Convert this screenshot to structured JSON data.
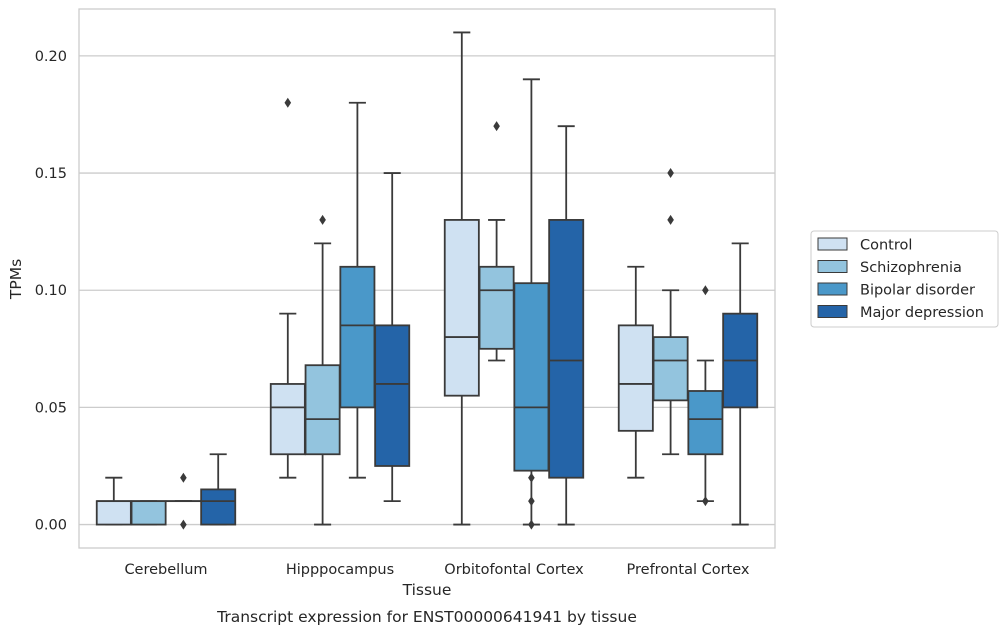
{
  "chart_data": {
    "type": "box",
    "xlabel": "Tissue",
    "ylabel": "TPMs",
    "caption": "Transcript expression for ENST00000641941 by tissue",
    "ylim": [
      -0.01,
      0.22
    ],
    "yticks": [
      "0.00",
      "0.05",
      "0.10",
      "0.15",
      "0.20"
    ],
    "ytick_values": [
      0,
      0.05,
      0.1,
      0.15,
      0.2
    ],
    "grid": "horizontal",
    "legend_position": "right",
    "categories": [
      "Cerebellum",
      "Hipppocampus",
      "Orbitofontal Cortex",
      "Prefrontal Cortex"
    ],
    "series": [
      {
        "name": "Control",
        "color": "#cfe1f2",
        "boxes": [
          {
            "whislo": 0.0,
            "q1": 0.0,
            "med": 0.01,
            "q3": 0.01,
            "whishi": 0.02,
            "fliers": []
          },
          {
            "whislo": 0.02,
            "q1": 0.03,
            "med": 0.05,
            "q3": 0.06,
            "whishi": 0.09,
            "fliers": [
              0.18
            ]
          },
          {
            "whislo": 0.0,
            "q1": 0.055,
            "med": 0.08,
            "q3": 0.13,
            "whishi": 0.21,
            "fliers": []
          },
          {
            "whislo": 0.02,
            "q1": 0.04,
            "med": 0.06,
            "q3": 0.085,
            "whishi": 0.11,
            "fliers": []
          }
        ]
      },
      {
        "name": "Schizophrenia",
        "color": "#93c4de",
        "boxes": [
          {
            "whislo": 0.0,
            "q1": 0.0,
            "med": 0.01,
            "q3": 0.01,
            "whishi": 0.01,
            "fliers": []
          },
          {
            "whislo": 0.0,
            "q1": 0.03,
            "med": 0.045,
            "q3": 0.068,
            "whishi": 0.12,
            "fliers": [
              0.13
            ]
          },
          {
            "whislo": 0.07,
            "q1": 0.075,
            "med": 0.1,
            "q3": 0.11,
            "whishi": 0.13,
            "fliers": [
              0.17
            ]
          },
          {
            "whislo": 0.03,
            "q1": 0.053,
            "med": 0.07,
            "q3": 0.08,
            "whishi": 0.1,
            "fliers": [
              0.13,
              0.15
            ]
          }
        ]
      },
      {
        "name": "Bipolar disorder",
        "color": "#4a98c9",
        "boxes": [
          {
            "whislo": 0.01,
            "q1": 0.01,
            "med": 0.01,
            "q3": 0.01,
            "whishi": 0.01,
            "fliers": [
              0.0,
              0.02
            ]
          },
          {
            "whislo": 0.02,
            "q1": 0.05,
            "med": 0.085,
            "q3": 0.11,
            "whishi": 0.18,
            "fliers": []
          },
          {
            "whislo": 0.0,
            "q1": 0.023,
            "med": 0.05,
            "q3": 0.103,
            "whishi": 0.19,
            "fliers": [
              0.0,
              0.01,
              0.02
            ]
          },
          {
            "whislo": 0.01,
            "q1": 0.03,
            "med": 0.045,
            "q3": 0.057,
            "whishi": 0.07,
            "fliers": [
              0.01,
              0.1
            ]
          }
        ]
      },
      {
        "name": "Major depression",
        "color": "#2464a8",
        "boxes": [
          {
            "whislo": 0.0,
            "q1": 0.0,
            "med": 0.01,
            "q3": 0.015,
            "whishi": 0.03,
            "fliers": []
          },
          {
            "whislo": 0.01,
            "q1": 0.025,
            "med": 0.06,
            "q3": 0.085,
            "whishi": 0.15,
            "fliers": []
          },
          {
            "whislo": 0.0,
            "q1": 0.02,
            "med": 0.07,
            "q3": 0.13,
            "whishi": 0.17,
            "fliers": []
          },
          {
            "whislo": 0.0,
            "q1": 0.05,
            "med": 0.07,
            "q3": 0.09,
            "whishi": 0.12,
            "fliers": []
          }
        ]
      }
    ]
  }
}
